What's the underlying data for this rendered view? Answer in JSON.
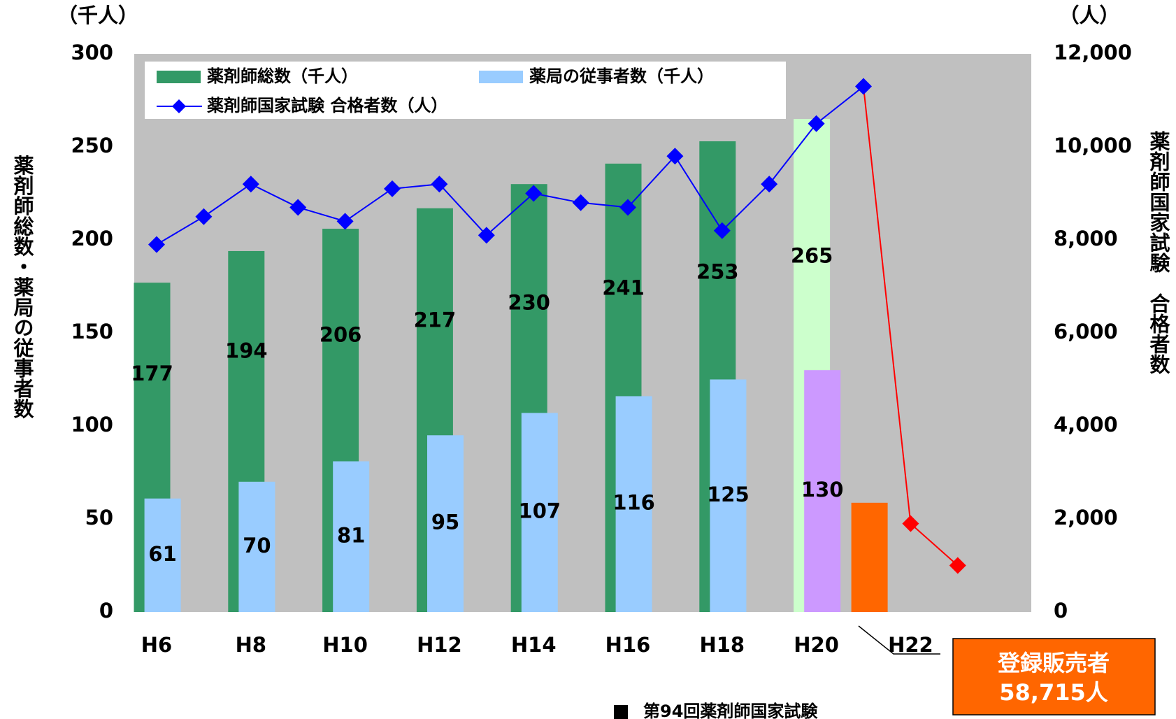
{
  "chart_data": {
    "type": "bar",
    "y_unit": "（千人）",
    "y2_unit": "（人）",
    "ylabel": "薬剤師総数・薬局の従事者数",
    "y2label": "薬剤師国家試験　合格者数",
    "categories": [
      "H6",
      null,
      "H8",
      null,
      "H10",
      null,
      "H12",
      null,
      "H14",
      null,
      "H16",
      null,
      "H18",
      null,
      "H20",
      null,
      "H22",
      null
    ],
    "series": [
      {
        "name": "薬剤師総数（千人）",
        "type": "bar",
        "color": "#339966",
        "colors": [
          "#339966",
          null,
          "#339966",
          null,
          "#339966",
          null,
          "#339966",
          null,
          "#339966",
          null,
          "#339966",
          null,
          "#339966",
          null,
          "#ccffcc",
          null,
          null,
          null
        ],
        "values": [
          177,
          null,
          194,
          null,
          206,
          null,
          217,
          null,
          230,
          null,
          241,
          null,
          253,
          null,
          265,
          null,
          null,
          null
        ]
      },
      {
        "name": "薬局の従事者数（千人）",
        "type": "bar",
        "color": "#99ccff",
        "colors": [
          "#99ccff",
          null,
          "#99ccff",
          null,
          "#99ccff",
          null,
          "#99ccff",
          null,
          "#99ccff",
          null,
          "#99ccff",
          null,
          "#99ccff",
          null,
          "#cc99ff",
          null,
          null,
          null
        ],
        "values": [
          61,
          null,
          70,
          null,
          81,
          null,
          95,
          null,
          107,
          null,
          116,
          null,
          125,
          null,
          130,
          null,
          null,
          null
        ]
      },
      {
        "type": "bar",
        "color": "#ff6600",
        "values": [
          null,
          null,
          null,
          null,
          null,
          null,
          null,
          null,
          null,
          null,
          null,
          null,
          null,
          null,
          null,
          58.715,
          null,
          null
        ]
      },
      {
        "name": "薬剤師国家試験 合格者数（人）",
        "type": "line",
        "axis": "y2",
        "color": "#0000ff",
        "point_colors": [
          "#0000ff",
          "#0000ff",
          "#0000ff",
          "#0000ff",
          "#0000ff",
          "#0000ff",
          "#0000ff",
          "#0000ff",
          "#0000ff",
          "#0000ff",
          "#0000ff",
          "#0000ff",
          "#0000ff",
          "#0000ff",
          "#0000ff",
          "#0000ff",
          "#ff0000",
          "#ff0000"
        ],
        "values": [
          7900,
          8500,
          9200,
          8700,
          8400,
          9100,
          9200,
          8100,
          9000,
          8800,
          8700,
          9800,
          8200,
          9200,
          10500,
          11300,
          1900,
          1000
        ]
      }
    ],
    "ylim": [
      0,
      300
    ],
    "yticks": [
      0,
      50,
      100,
      150,
      200,
      250,
      300
    ],
    "y2lim": [
      0,
      12000
    ],
    "y2ticks": [
      0,
      {
        "value": 2000,
        "label": "2,000"
      },
      {
        "value": 4000,
        "label": "4,000"
      },
      {
        "value": 6000,
        "label": "6,000"
      },
      {
        "value": 8000,
        "label": "8,000"
      },
      {
        "value": 10000,
        "label": "10,000"
      },
      {
        "value": 12000,
        "label": "12,000"
      }
    ],
    "callout": [
      "登録販売者",
      "58,715人"
    ],
    "note": "第94回薬剤師国家試験"
  }
}
